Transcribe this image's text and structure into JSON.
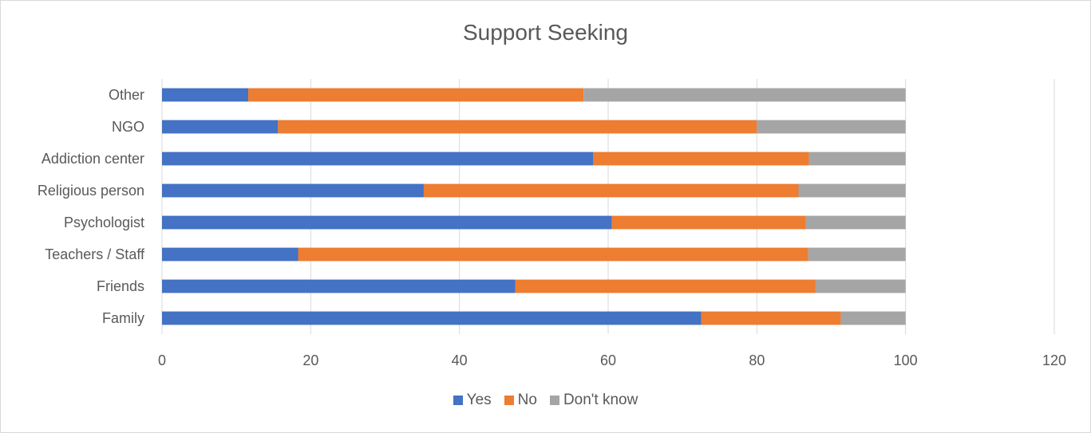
{
  "chart_data": {
    "type": "bar",
    "orientation": "horizontal",
    "stacked": true,
    "title": "Support Seeking",
    "categories": [
      "Family",
      "Friends",
      "Teachers / Staff",
      "Psychologist",
      "Religious person",
      "Addiction center",
      "NGO",
      "Other"
    ],
    "series": [
      {
        "name": "Yes",
        "color": "#4472c4",
        "values": [
          72.5,
          47.5,
          18.3,
          60.5,
          35.2,
          58.0,
          15.6,
          11.6
        ]
      },
      {
        "name": "No",
        "color": "#ed7d31",
        "values": [
          18.8,
          40.4,
          68.6,
          26.1,
          50.4,
          29.0,
          64.4,
          45.1
        ]
      },
      {
        "name": "Don't know",
        "color": "#a5a5a5",
        "values": [
          8.7,
          12.1,
          13.1,
          13.4,
          14.4,
          13.0,
          20.0,
          43.3
        ]
      }
    ],
    "xlim": [
      0,
      120
    ],
    "xticks": [
      0,
      20,
      40,
      60,
      80,
      100,
      120
    ],
    "grid": true,
    "legend_position": "bottom"
  }
}
